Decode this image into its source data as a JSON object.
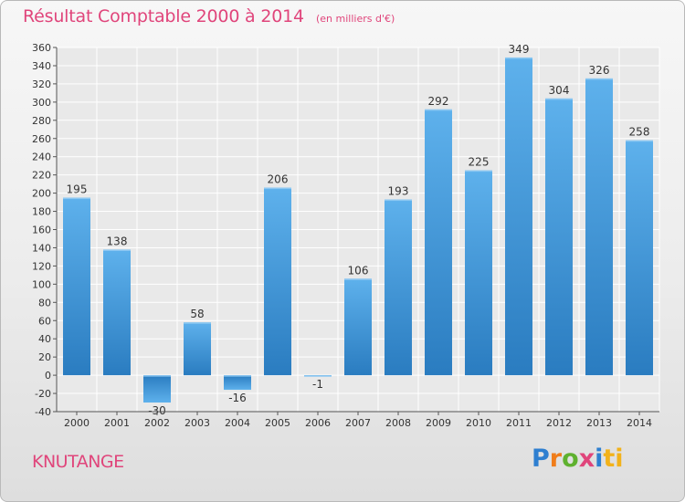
{
  "title": "Résultat Comptable 2000 à 2014",
  "unit_note": "(en milliers d'€)",
  "town": "KNUTANGE",
  "logo": [
    "P",
    "r",
    "o",
    "x",
    "i",
    "ti"
  ],
  "chart_data": {
    "type": "bar",
    "title": "Résultat Comptable 2000 à 2014",
    "subtitle": "(en milliers d'€)",
    "categories": [
      "2000",
      "2001",
      "2002",
      "2003",
      "2004",
      "2005",
      "2006",
      "2007",
      "2008",
      "2009",
      "2010",
      "2011",
      "2012",
      "2013",
      "2014"
    ],
    "values": [
      195,
      138,
      -30,
      58,
      -16,
      206,
      -1,
      106,
      193,
      292,
      225,
      349,
      304,
      326,
      258
    ],
    "ylim": [
      -40,
      360
    ],
    "yticks": [
      -40,
      -20,
      0,
      20,
      40,
      60,
      80,
      100,
      120,
      140,
      160,
      180,
      200,
      220,
      240,
      260,
      280,
      300,
      320,
      340,
      360
    ],
    "grid": true,
    "bar_color": "#3d93d6"
  }
}
